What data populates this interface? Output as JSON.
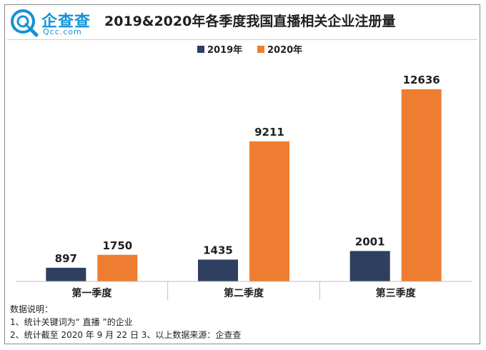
{
  "logo": {
    "name": "企查查",
    "domain": "Qcc.com",
    "icon": "magnifier-q-icon",
    "color": "#1592d6"
  },
  "notes": {
    "heading": "数据说明：",
    "line1": "1、统计关键词为“ 直播 ”的企业",
    "line2": "2、统计截至 2020 年 9 月 22 日 3、以上数据来源：企查查"
  },
  "chart_data": {
    "type": "bar",
    "title": "2019&2020年各季度我国直播相关企业注册量",
    "categories": [
      "第一季度",
      "第二季度",
      "第三季度"
    ],
    "series": [
      {
        "name": "2019年",
        "color": "#2e3f5f",
        "values": [
          897,
          1435,
          2001
        ]
      },
      {
        "name": "2020年",
        "color": "#ee7d31",
        "values": [
          1750,
          9211,
          12636
        ]
      }
    ],
    "xlabel": "",
    "ylabel": "",
    "ylim": [
      0,
      14000
    ],
    "grid": false,
    "legend": "top-center",
    "data_labels": true
  }
}
